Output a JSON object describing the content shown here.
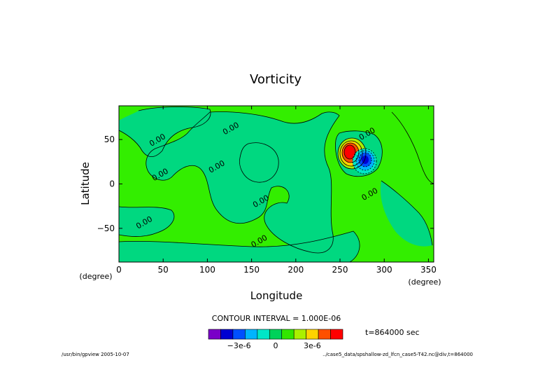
{
  "chart_data": {
    "type": "heatmap",
    "title": "Vorticity",
    "xlabel": "Longitude",
    "ylabel": "Latitude",
    "xunit": "(degree)",
    "yunit": "(degree)",
    "xlim": [
      0,
      356
    ],
    "ylim": [
      -88,
      88
    ],
    "xticks": [
      0,
      50,
      100,
      150,
      200,
      250,
      300,
      350
    ],
    "yticks": [
      50,
      0,
      -50
    ],
    "xtick_labels": [
      "0",
      "50",
      "100",
      "150",
      "200",
      "250",
      "300",
      "350"
    ],
    "ytick_labels": [
      "50",
      "0",
      "−50"
    ],
    "contour_interval_text": "CONTOUR INTERVAL = 1.000E-06",
    "time_text": "t=864000 sec",
    "colorbar": {
      "colors": [
        "#7a00c8",
        "#0000d2",
        "#0050ff",
        "#00b4ff",
        "#00e6c8",
        "#00d25a",
        "#32e600",
        "#aaf000",
        "#ffd200",
        "#ff5000",
        "#ff0000"
      ],
      "tick_labels": [
        "−3e-6",
        "0",
        "3e-6"
      ],
      "tick_values": [
        -3e-06,
        0,
        3e-06
      ]
    },
    "field": {
      "background_value": 0,
      "background_color": "#33ee00",
      "contour_label": "0.00",
      "contour_labels": [
        {
          "text": "0.00",
          "lon": 128,
          "lat": 60
        },
        {
          "text": "0.00",
          "lon": 45,
          "lat": 47
        },
        {
          "text": "0.00",
          "lon": 48,
          "lat": 8
        },
        {
          "text": "0.00",
          "lon": 112,
          "lat": 17
        },
        {
          "text": "0.00",
          "lon": 162,
          "lat": -22
        },
        {
          "text": "0.00",
          "lon": 30,
          "lat": -46
        },
        {
          "text": "0.00",
          "lon": 160,
          "lat": -67
        },
        {
          "text": "0.00",
          "lon": 282,
          "lat": 54
        },
        {
          "text": "0.00",
          "lon": 285,
          "lat": -14
        }
      ],
      "vortex": {
        "center_lon": 270,
        "center_lat": 28,
        "positive_peak_lon": 260,
        "positive_peak_lat": 38,
        "positive_peak_value": 5e-06,
        "negative_peak_lon": 280,
        "negative_peak_lat": 22,
        "negative_peak_value": -5e-06
      }
    }
  },
  "footer": {
    "left": "/usr/bin/gpview  2005-10-07",
    "right": "../case5_data/spshallow-zd_lfcn_case5-T42.nc@div,t=864000"
  }
}
